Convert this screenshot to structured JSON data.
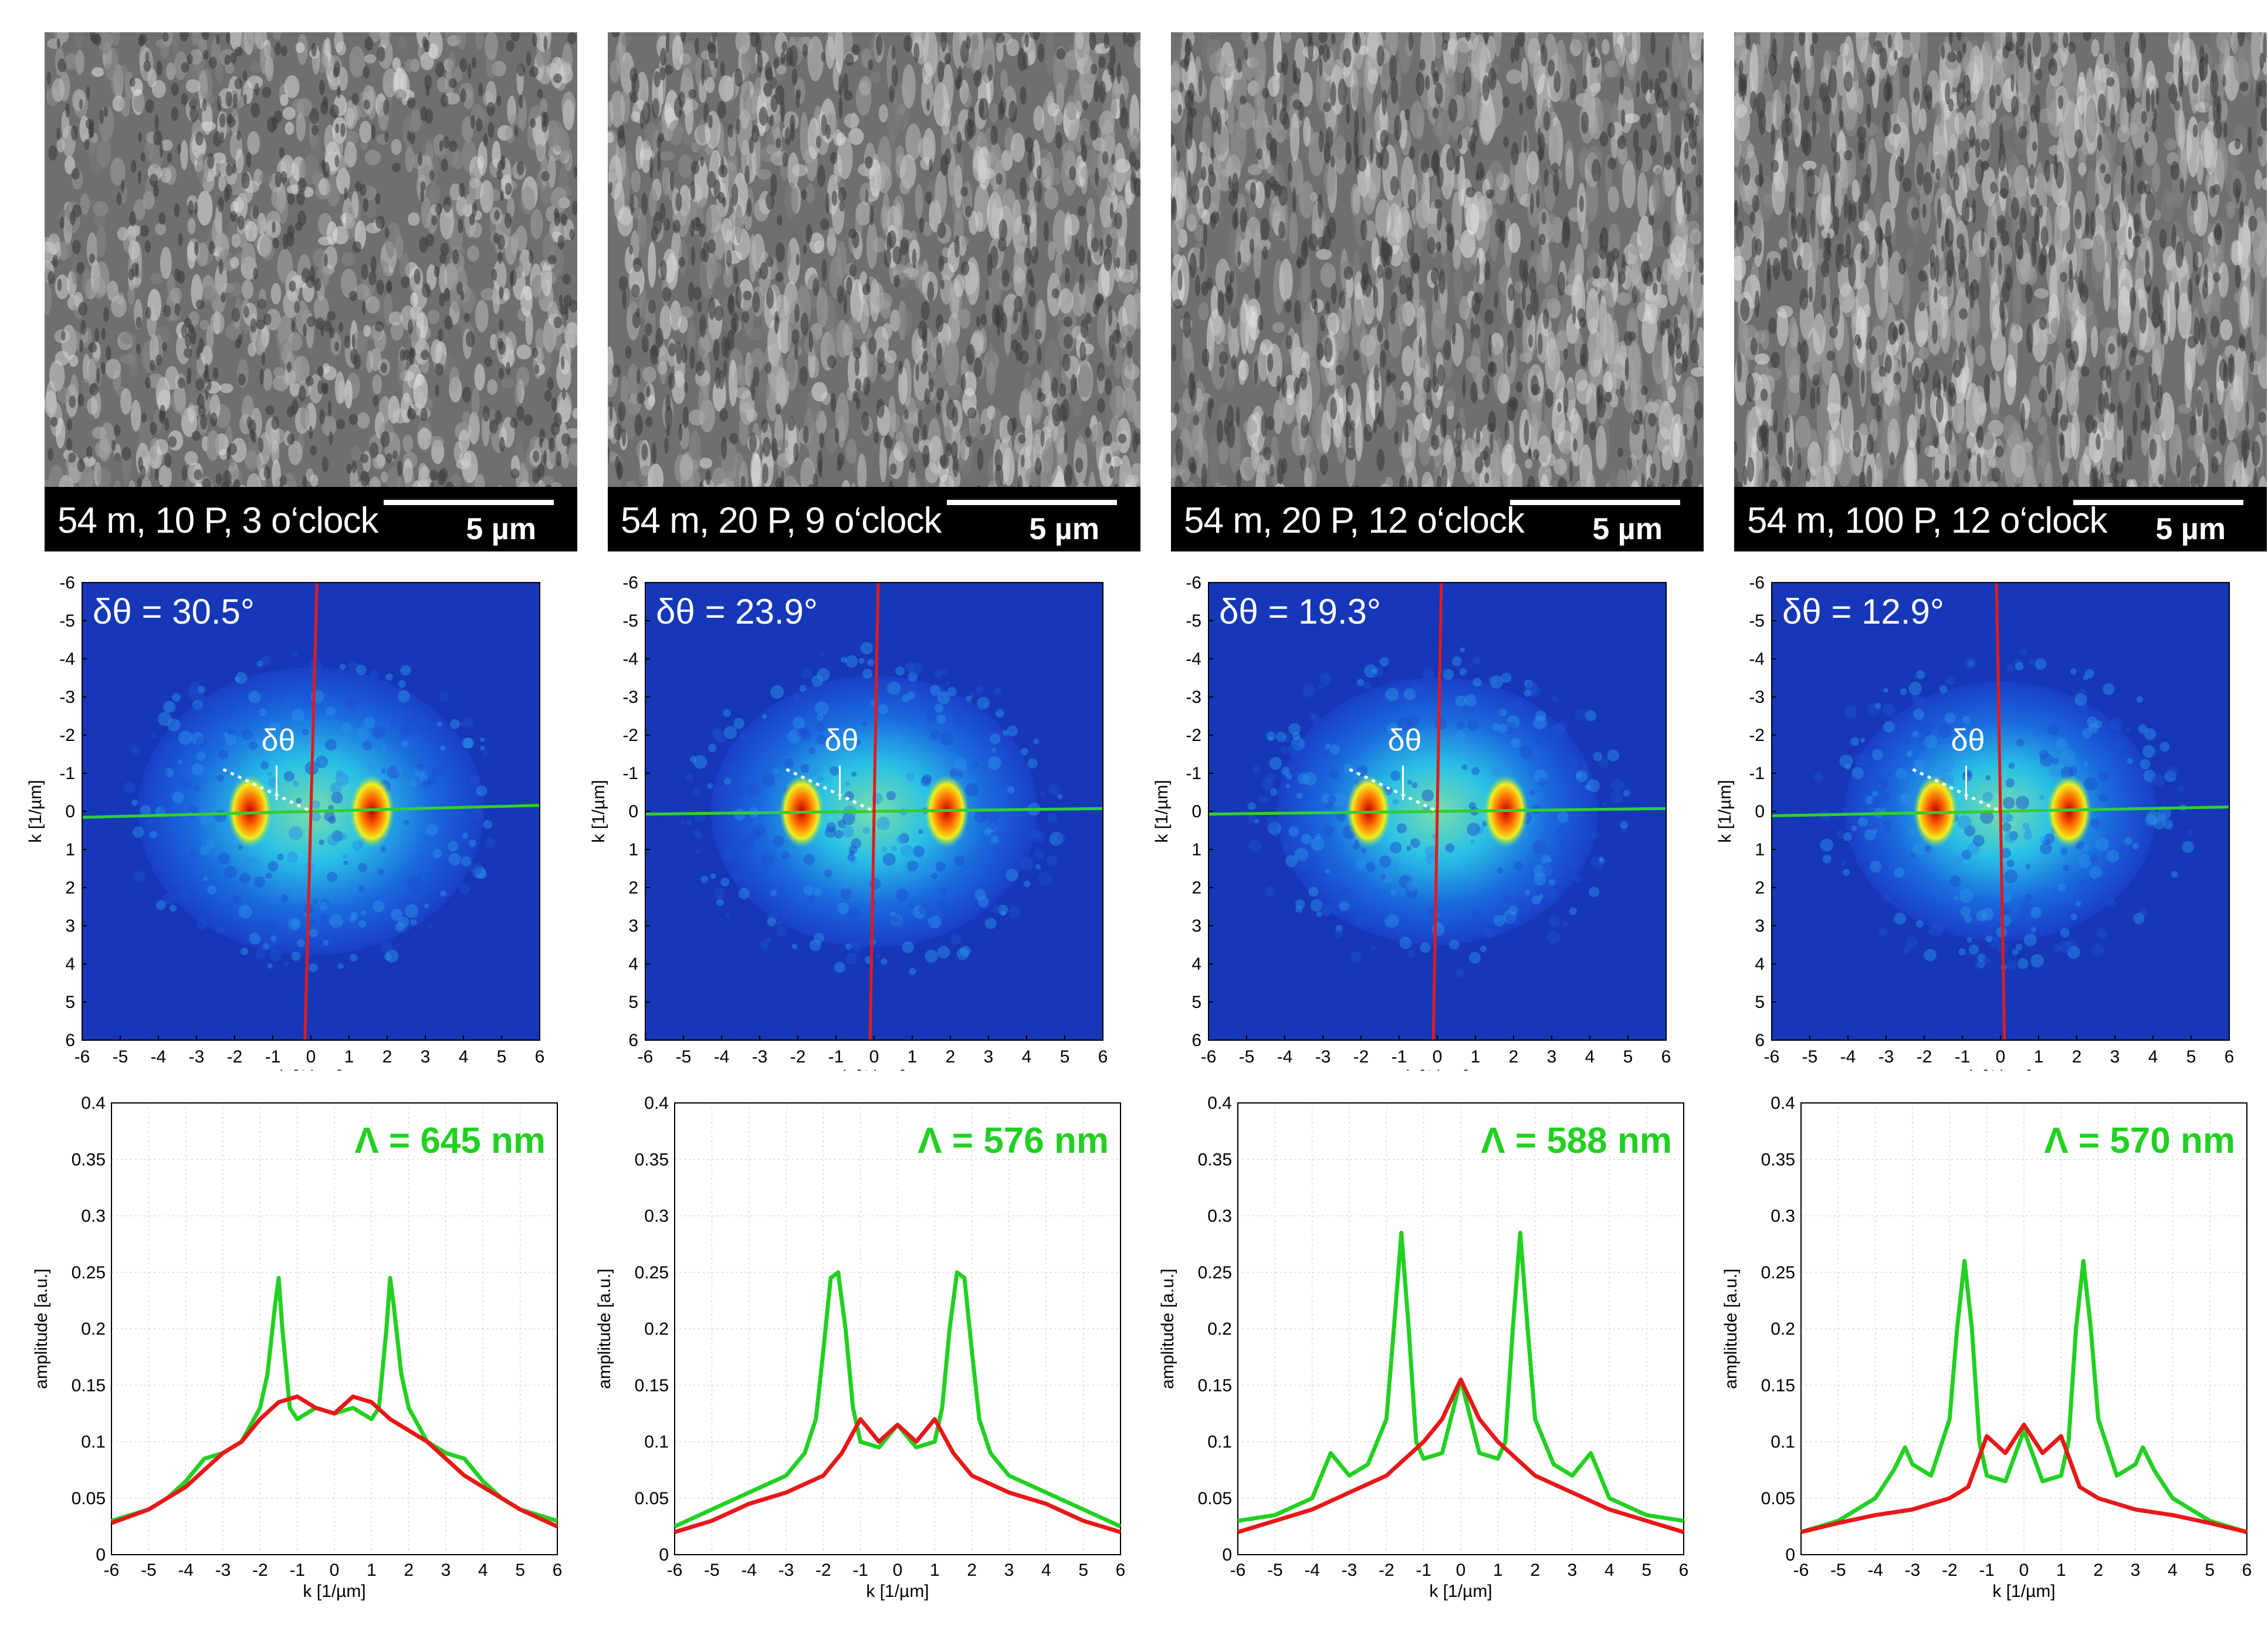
{
  "panels": [
    {
      "caption": "54 m, 10 P, 3 o‘clock",
      "scale_bar": "5 µm",
      "delta_theta": "δθ = 30.5°",
      "delta_theta_marker": "δθ",
      "period": "Λ = 645 nm",
      "red_line_angle_deg": 1.5,
      "green_line_angle_deg": 178.5,
      "spectrum_blobs": [
        -1.6,
        1.6
      ],
      "spectrum_spread": 1.0
    },
    {
      "caption": "54 m, 20 P, 9 o‘clock",
      "scale_bar": "5 µm",
      "delta_theta": "δθ = 23.9°",
      "delta_theta_marker": "δθ",
      "period": "Λ = 576 nm",
      "red_line_angle_deg": 1.0,
      "green_line_angle_deg": 179.3,
      "spectrum_blobs": [
        -1.9,
        1.9
      ],
      "spectrum_spread": 0.8
    },
    {
      "caption": "54 m, 20 P, 12 o‘clock",
      "scale_bar": "5 µm",
      "delta_theta": "δθ = 19.3°",
      "delta_theta_marker": "δθ",
      "period": "Λ = 588 nm",
      "red_line_angle_deg": 1.0,
      "green_line_angle_deg": 179.3,
      "spectrum_blobs": [
        -1.8,
        1.8
      ],
      "spectrum_spread": 0.75
    },
    {
      "caption": "54 m, 100 P, 12 o‘clock",
      "scale_bar": "5 µm",
      "delta_theta": "δθ = 12.9°",
      "delta_theta_marker": "δθ",
      "period": "Λ = 570 nm",
      "red_line_angle_deg": -1.0,
      "green_line_angle_deg": 178.9,
      "spectrum_blobs": [
        -1.7,
        1.8
      ],
      "spectrum_spread": 0.65
    }
  ],
  "fft_axes": {
    "xlabel": "k [1/µm]",
    "ylabel": "k [1/µm]",
    "xticks": [
      "-6",
      "-5",
      "-4",
      "-3",
      "-2",
      "-1",
      "0",
      "1",
      "2",
      "3",
      "4",
      "5",
      "6"
    ],
    "yticks": [
      "-6",
      "-5",
      "-4",
      "-3",
      "-2",
      "-1",
      "0",
      "1",
      "2",
      "3",
      "4",
      "5",
      "6"
    ]
  },
  "chart_data": [
    {
      "type": "line",
      "title": "",
      "xlabel": "k [1/µm]",
      "ylabel": "amplitude [a.u.]",
      "xlim": [
        -6,
        6
      ],
      "ylim": [
        0,
        0.4
      ],
      "xticks": [
        "-6",
        "-5",
        "-4",
        "-3",
        "-2",
        "-1",
        "0",
        "1",
        "2",
        "3",
        "4",
        "5",
        "6"
      ],
      "yticks": [
        "0",
        "0.05",
        "0.1",
        "0.15",
        "0.2",
        "0.25",
        "0.3",
        "0.35",
        "0.4"
      ],
      "annotation": "Λ = 645 nm",
      "series": [
        {
          "name": "green",
          "color": "#22d022",
          "x": [
            -6,
            -5,
            -4.5,
            -4,
            -3.5,
            -3,
            -2.5,
            -2,
            -1.8,
            -1.6,
            -1.5,
            -1.4,
            -1.2,
            -1,
            -0.5,
            0,
            0.5,
            1,
            1.2,
            1.4,
            1.5,
            1.6,
            1.8,
            2,
            2.5,
            3,
            3.5,
            4,
            4.5,
            5,
            6
          ],
          "y": [
            0.03,
            0.04,
            0.05,
            0.065,
            0.085,
            0.09,
            0.1,
            0.13,
            0.16,
            0.22,
            0.245,
            0.2,
            0.13,
            0.12,
            0.13,
            0.125,
            0.13,
            0.12,
            0.13,
            0.2,
            0.245,
            0.22,
            0.16,
            0.13,
            0.1,
            0.09,
            0.085,
            0.065,
            0.05,
            0.04,
            0.03
          ]
        },
        {
          "name": "red",
          "color": "#e81818",
          "x": [
            -6,
            -5,
            -4.5,
            -4,
            -3.5,
            -3,
            -2.5,
            -2,
            -1.5,
            -1,
            -0.5,
            0,
            0.5,
            1,
            1.5,
            2,
            2.5,
            3,
            3.5,
            4,
            4.5,
            5,
            6
          ],
          "y": [
            0.028,
            0.04,
            0.05,
            0.06,
            0.075,
            0.09,
            0.1,
            0.12,
            0.135,
            0.14,
            0.13,
            0.125,
            0.14,
            0.135,
            0.12,
            0.11,
            0.1,
            0.085,
            0.07,
            0.06,
            0.05,
            0.04,
            0.025
          ]
        }
      ]
    },
    {
      "type": "line",
      "title": "",
      "xlabel": "k [1/µm]",
      "ylabel": "amplitude [a.u.]",
      "xlim": [
        -6,
        6
      ],
      "ylim": [
        0,
        0.4
      ],
      "xticks": [
        "-6",
        "-5",
        "-4",
        "-3",
        "-2",
        "-1",
        "0",
        "1",
        "2",
        "3",
        "4",
        "5",
        "6"
      ],
      "yticks": [
        "0",
        "0.05",
        "0.1",
        "0.15",
        "0.2",
        "0.25",
        "0.3",
        "0.35",
        "0.4"
      ],
      "annotation": "Λ = 576 nm",
      "series": [
        {
          "name": "green",
          "color": "#22d022",
          "x": [
            -6,
            -5,
            -4,
            -3,
            -2.5,
            -2.2,
            -2,
            -1.8,
            -1.6,
            -1.4,
            -1.2,
            -1,
            -0.5,
            0,
            0.5,
            1,
            1.2,
            1.4,
            1.6,
            1.8,
            2,
            2.2,
            2.5,
            3,
            4,
            5,
            6
          ],
          "y": [
            0.025,
            0.04,
            0.055,
            0.07,
            0.09,
            0.12,
            0.18,
            0.245,
            0.25,
            0.2,
            0.13,
            0.1,
            0.095,
            0.115,
            0.095,
            0.1,
            0.13,
            0.2,
            0.25,
            0.245,
            0.18,
            0.12,
            0.09,
            0.07,
            0.055,
            0.04,
            0.025
          ]
        },
        {
          "name": "red",
          "color": "#e81818",
          "x": [
            -6,
            -5,
            -4,
            -3,
            -2,
            -1.5,
            -1,
            -0.5,
            0,
            0.5,
            1,
            1.5,
            2,
            3,
            4,
            5,
            6
          ],
          "y": [
            0.02,
            0.03,
            0.045,
            0.055,
            0.07,
            0.09,
            0.12,
            0.1,
            0.115,
            0.1,
            0.12,
            0.09,
            0.07,
            0.055,
            0.045,
            0.03,
            0.02
          ]
        }
      ]
    },
    {
      "type": "line",
      "title": "",
      "xlabel": "k [1/µm]",
      "ylabel": "amplitude [a.u.]",
      "xlim": [
        -6,
        6
      ],
      "ylim": [
        0,
        0.4
      ],
      "xticks": [
        "-6",
        "-5",
        "-4",
        "-3",
        "-2",
        "-1",
        "0",
        "1",
        "2",
        "3",
        "4",
        "5",
        "6"
      ],
      "yticks": [
        "0",
        "0.05",
        "0.1",
        "0.15",
        "0.2",
        "0.25",
        "0.3",
        "0.35",
        "0.4"
      ],
      "annotation": "Λ = 588 nm",
      "series": [
        {
          "name": "green",
          "color": "#22d022",
          "x": [
            -6,
            -5,
            -4,
            -3.5,
            -3,
            -2.5,
            -2,
            -1.8,
            -1.6,
            -1.4,
            -1.2,
            -1,
            -0.5,
            0,
            0.5,
            1,
            1.2,
            1.4,
            1.6,
            1.8,
            2,
            2.5,
            3,
            3.5,
            4,
            5,
            6
          ],
          "y": [
            0.03,
            0.035,
            0.05,
            0.09,
            0.07,
            0.08,
            0.12,
            0.2,
            0.285,
            0.2,
            0.1,
            0.085,
            0.09,
            0.155,
            0.09,
            0.085,
            0.1,
            0.2,
            0.285,
            0.2,
            0.12,
            0.08,
            0.07,
            0.09,
            0.05,
            0.035,
            0.03
          ]
        },
        {
          "name": "red",
          "color": "#e81818",
          "x": [
            -6,
            -5,
            -4,
            -3,
            -2,
            -1.5,
            -1,
            -0.5,
            0,
            0.5,
            1,
            1.5,
            2,
            3,
            4,
            5,
            6
          ],
          "y": [
            0.02,
            0.03,
            0.04,
            0.055,
            0.07,
            0.085,
            0.1,
            0.12,
            0.155,
            0.12,
            0.1,
            0.085,
            0.07,
            0.055,
            0.04,
            0.03,
            0.02
          ]
        }
      ]
    },
    {
      "type": "line",
      "title": "",
      "xlabel": "k [1/µm]",
      "ylabel": "amplitude [a.u.]",
      "xlim": [
        -6,
        6
      ],
      "ylim": [
        0,
        0.4
      ],
      "xticks": [
        "-6",
        "-5",
        "-4",
        "-3",
        "-2",
        "-1",
        "0",
        "1",
        "2",
        "3",
        "4",
        "5",
        "6"
      ],
      "yticks": [
        "0",
        "0.05",
        "0.1",
        "0.15",
        "0.2",
        "0.25",
        "0.3",
        "0.35",
        "0.4"
      ],
      "annotation": "Λ = 570 nm",
      "series": [
        {
          "name": "green",
          "color": "#22d022",
          "x": [
            -6,
            -5,
            -4,
            -3.5,
            -3.2,
            -3,
            -2.5,
            -2,
            -1.8,
            -1.6,
            -1.4,
            -1.2,
            -1,
            -0.5,
            0,
            0.5,
            1,
            1.2,
            1.4,
            1.6,
            1.8,
            2,
            2.5,
            3,
            3.2,
            3.5,
            4,
            5,
            6
          ],
          "y": [
            0.02,
            0.03,
            0.05,
            0.075,
            0.095,
            0.08,
            0.07,
            0.12,
            0.2,
            0.26,
            0.2,
            0.1,
            0.07,
            0.065,
            0.11,
            0.065,
            0.07,
            0.1,
            0.2,
            0.26,
            0.2,
            0.12,
            0.07,
            0.08,
            0.095,
            0.075,
            0.05,
            0.03,
            0.02
          ]
        },
        {
          "name": "red",
          "color": "#e81818",
          "x": [
            -6,
            -5,
            -4,
            -3,
            -2,
            -1.5,
            -1,
            -0.5,
            0,
            0.5,
            1,
            1.5,
            2,
            3,
            4,
            5,
            6
          ],
          "y": [
            0.02,
            0.028,
            0.035,
            0.04,
            0.05,
            0.06,
            0.105,
            0.09,
            0.115,
            0.09,
            0.105,
            0.06,
            0.05,
            0.04,
            0.035,
            0.028,
            0.02
          ]
        }
      ]
    }
  ]
}
